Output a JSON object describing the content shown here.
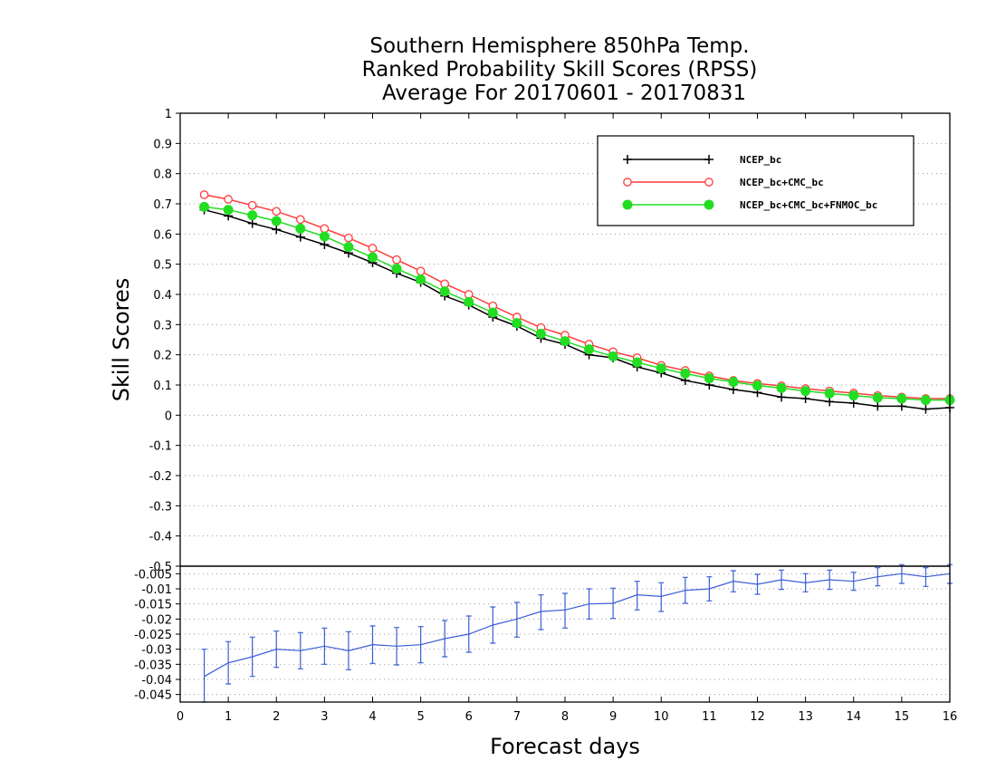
{
  "title_lines": [
    "Southern Hemisphere 850hPa Temp.",
    "Ranked Probability Skill Scores (RPSS)",
    "Average For 20170601 - 20170831"
  ],
  "chart_data": [
    {
      "type": "line",
      "xlabel": "Forecast days",
      "ylabel": "Skill Scores",
      "xlim": [
        0,
        16
      ],
      "ylim": [
        -0.5,
        1
      ],
      "xticks": [
        "0",
        "1",
        "2",
        "3",
        "4",
        "5",
        "6",
        "7",
        "8",
        "9",
        "10",
        "11",
        "12",
        "13",
        "14",
        "15",
        "16"
      ],
      "yticks": [
        "-0.5",
        "-0.4",
        "-0.3",
        "-0.2",
        "-0.1",
        "0",
        "0.1",
        "0.2",
        "0.3",
        "0.4",
        "0.5",
        "0.6",
        "0.7",
        "0.8",
        "0.9",
        "1"
      ],
      "grid": true,
      "legend_position": "top-right",
      "x": [
        0.5,
        1,
        1.5,
        2,
        2.5,
        3,
        3.5,
        4,
        4.5,
        5,
        5.5,
        6,
        6.5,
        7,
        7.5,
        8,
        8.5,
        9,
        9.5,
        10,
        10.5,
        11,
        11.5,
        12,
        12.5,
        13,
        13.5,
        14,
        14.5,
        15,
        15.5,
        16
      ],
      "series": [
        {
          "name": "NCEP_bc",
          "color": "#000000",
          "marker": "plus",
          "values": [
            0.68,
            0.66,
            0.635,
            0.615,
            0.59,
            0.565,
            0.537,
            0.505,
            0.47,
            0.44,
            0.395,
            0.365,
            0.325,
            0.295,
            0.255,
            0.235,
            0.2,
            0.19,
            0.16,
            0.14,
            0.115,
            0.1,
            0.085,
            0.075,
            0.06,
            0.055,
            0.045,
            0.04,
            0.03,
            0.03,
            0.02,
            0.025
          ]
        },
        {
          "name": "NCEP_bc+CMC_bc",
          "color": "#ff3b3b",
          "marker": "open-circle",
          "values": [
            0.73,
            0.715,
            0.695,
            0.675,
            0.648,
            0.618,
            0.587,
            0.553,
            0.515,
            0.477,
            0.435,
            0.4,
            0.362,
            0.325,
            0.29,
            0.265,
            0.235,
            0.21,
            0.19,
            0.165,
            0.148,
            0.13,
            0.115,
            0.105,
            0.097,
            0.088,
            0.08,
            0.073,
            0.065,
            0.06,
            0.055,
            0.055
          ]
        },
        {
          "name": "NCEP_bc+CMC_bc+FNMOC_bc",
          "color": "#22dd22",
          "marker": "filled-circle",
          "values": [
            0.69,
            0.68,
            0.662,
            0.643,
            0.618,
            0.592,
            0.557,
            0.523,
            0.485,
            0.45,
            0.41,
            0.375,
            0.34,
            0.305,
            0.27,
            0.245,
            0.218,
            0.195,
            0.175,
            0.155,
            0.138,
            0.122,
            0.11,
            0.098,
            0.09,
            0.08,
            0.072,
            0.065,
            0.058,
            0.055,
            0.05,
            0.05
          ]
        }
      ]
    },
    {
      "type": "line",
      "xlim": [
        0,
        16
      ],
      "ylim": [
        -0.0475,
        -0.0025
      ],
      "yticks": [
        "-0.045",
        "-0.04",
        "-0.035",
        "-0.03",
        "-0.025",
        "-0.02",
        "-0.015",
        "-0.01",
        "-0.005"
      ],
      "grid": true,
      "series": [
        {
          "color": "#3a5fd6",
          "error_bars": true,
          "x": [
            0.5,
            1,
            1.5,
            2,
            2.5,
            3,
            3.5,
            4,
            4.5,
            5,
            5.5,
            6,
            6.5,
            7,
            7.5,
            8,
            8.5,
            9,
            9.5,
            10,
            10.5,
            11,
            11.5,
            12,
            12.5,
            13,
            13.5,
            14,
            14.5,
            15,
            15.5,
            16
          ],
          "values": [
            -0.039,
            -0.0345,
            -0.0325,
            -0.03,
            -0.0305,
            -0.029,
            -0.0305,
            -0.0285,
            -0.029,
            -0.0285,
            -0.0265,
            -0.025,
            -0.022,
            -0.02,
            -0.0175,
            -0.017,
            -0.015,
            -0.0148,
            -0.012,
            -0.0125,
            -0.0105,
            -0.01,
            -0.0075,
            -0.0085,
            -0.007,
            -0.008,
            -0.007,
            -0.0075,
            -0.006,
            -0.005,
            -0.006,
            -0.005
          ],
          "error_low": [
            -0.048,
            -0.0415,
            -0.039,
            -0.036,
            -0.0365,
            -0.035,
            -0.0368,
            -0.0347,
            -0.0352,
            -0.0345,
            -0.0325,
            -0.031,
            -0.028,
            -0.026,
            -0.0235,
            -0.023,
            -0.02,
            -0.0198,
            -0.017,
            -0.0175,
            -0.0148,
            -0.014,
            -0.011,
            -0.0118,
            -0.0102,
            -0.011,
            -0.0102,
            -0.0105,
            -0.009,
            -0.0082,
            -0.0092,
            -0.0082
          ],
          "error_high": [
            -0.03,
            -0.0275,
            -0.026,
            -0.024,
            -0.0245,
            -0.023,
            -0.0242,
            -0.0223,
            -0.0228,
            -0.0225,
            -0.0205,
            -0.019,
            -0.016,
            -0.0145,
            -0.012,
            -0.0115,
            -0.01,
            -0.0098,
            -0.0075,
            -0.008,
            -0.0062,
            -0.006,
            -0.004,
            -0.0052,
            -0.0038,
            -0.005,
            -0.0038,
            -0.0045,
            -0.003,
            -0.002,
            -0.003,
            -0.002
          ]
        }
      ]
    }
  ]
}
